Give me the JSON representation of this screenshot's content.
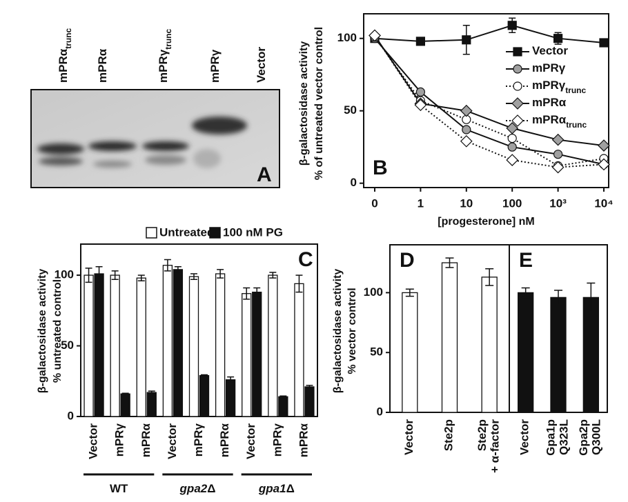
{
  "blot": {
    "label": "A",
    "lanes": [
      {
        "text": "mPRα",
        "sub": "trunc"
      },
      {
        "text": "mPRα"
      },
      {
        "text": "mPRγ",
        "sub": "trunc"
      },
      {
        "text": "mPRγ"
      },
      {
        "text": "Vector"
      }
    ]
  },
  "chart_data": [
    {
      "type": "line",
      "label": "B",
      "ylabel": [
        "β-galactosidase activity",
        "% of untreated vector control"
      ],
      "xlabel": "[progesterone] nM",
      "categories": [
        "0",
        "1",
        "10",
        "100",
        "10³",
        "10⁴"
      ],
      "ylim": [
        -3,
        117
      ],
      "yticks": [
        0,
        50,
        100
      ],
      "series": [
        {
          "name": "Vector",
          "color": "#111111",
          "marker": "square",
          "dash": false,
          "values": [
            100,
            98,
            99,
            109,
            100,
            97
          ],
          "errors": [
            0,
            0,
            10,
            5,
            4,
            0
          ]
        },
        {
          "name": "mPRγ",
          "color": "#a0a0a0",
          "marker": "circle",
          "dash": false,
          "values": [
            100,
            63,
            37,
            25,
            20,
            13
          ]
        },
        {
          "name": "mPRγ",
          "name_sub": "trunc",
          "color": "#ffffff",
          "marker": "circle",
          "dash": true,
          "values": [
            101,
            57,
            44,
            31,
            12,
            17
          ]
        },
        {
          "name": "mPRα",
          "color": "#a0a0a0",
          "marker": "diamond",
          "dash": false,
          "values": [
            102,
            55,
            50,
            38,
            30,
            26
          ]
        },
        {
          "name": "mPRα",
          "name_sub": "trunc",
          "color": "#ffffff",
          "marker": "diamond",
          "dash": true,
          "values": [
            102,
            54,
            29,
            16,
            11,
            13
          ]
        }
      ]
    },
    {
      "type": "bar",
      "label": "C",
      "ylabel": [
        "β-galactosidase activity",
        "% untreated control"
      ],
      "categories": [
        "Vector",
        "mPRγ",
        "mPRα",
        "Vector",
        "mPRγ",
        "mPRα",
        "Vector",
        "mPRγ",
        "mPRα"
      ],
      "groups": [
        {
          "text": "WT",
          "italic": false
        },
        {
          "text": "gpa2",
          "suffix": "Δ",
          "italic": true
        },
        {
          "text": "gpa1",
          "suffix": "Δ",
          "italic": true
        }
      ],
      "ylim": [
        0,
        122
      ],
      "yticks": [
        0,
        50,
        100
      ],
      "series": [
        {
          "name": "Untreated",
          "color": "#ffffff",
          "values": [
            100,
            100,
            98,
            107,
            99,
            101,
            87,
            100,
            94
          ],
          "errors": [
            5,
            3,
            2,
            4,
            2,
            3,
            4,
            2,
            6
          ]
        },
        {
          "name": "100 nM PG",
          "color": "#111111",
          "values": [
            101,
            16,
            17,
            104,
            29,
            26,
            88,
            14,
            21
          ],
          "errors": [
            5,
            0.5,
            1,
            2,
            0.5,
            2,
            3,
            0.5,
            1
          ]
        }
      ]
    },
    {
      "type": "bar",
      "label": "D",
      "ylabel": [
        "β-galactosidase activity",
        "% vector control"
      ],
      "categories": [
        [
          "Vector"
        ],
        [
          "Ste2p"
        ],
        [
          "Ste2p",
          "+ α-factor"
        ]
      ],
      "ylim": [
        0,
        140
      ],
      "yticks": [
        0,
        50,
        100
      ],
      "color": "#ffffff",
      "values": [
        100,
        125,
        113
      ],
      "errors": [
        3,
        4,
        7
      ]
    },
    {
      "type": "bar",
      "label": "E",
      "categories": [
        [
          "Vector"
        ],
        [
          "Gpa1p",
          "Q323L"
        ],
        [
          "Gpa2p",
          "Q300L"
        ]
      ],
      "ylim": [
        0,
        140
      ],
      "color": "#111111",
      "values": [
        100,
        96,
        96
      ],
      "errors": [
        4,
        6,
        12
      ]
    }
  ]
}
